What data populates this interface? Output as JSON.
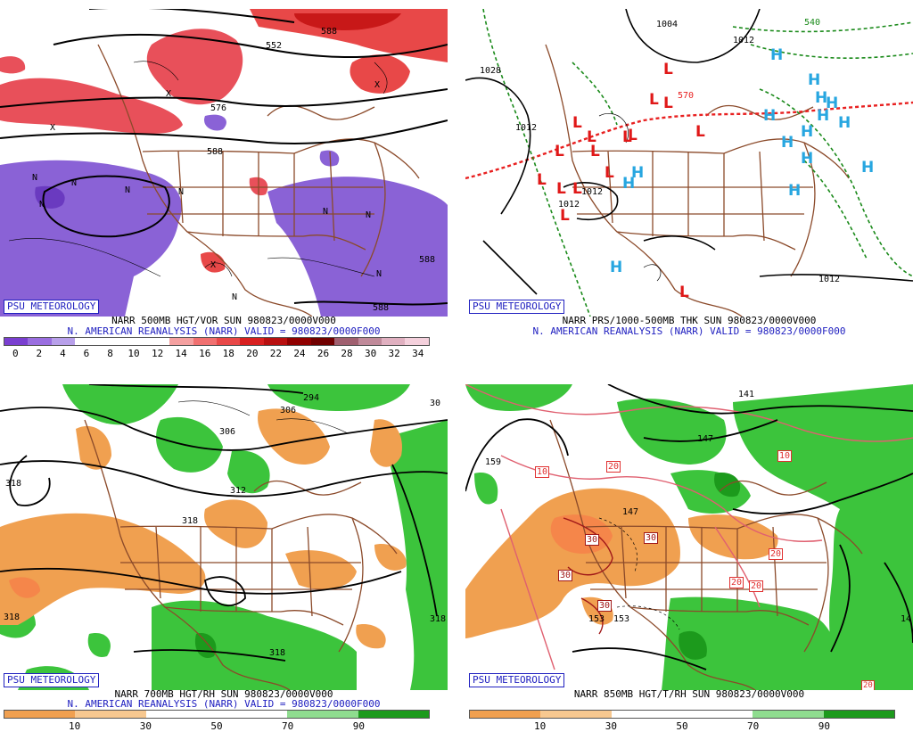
{
  "badge": "PSU METEOROLOGY",
  "colors": {
    "vort_purple": "#8a62d6",
    "vort_red": "#e8505a",
    "thk_red": "#e82020",
    "thk_green": "#1a8a1a",
    "h_blue": "#27a6e0",
    "l_red": "#e01818",
    "rh_green": "#3cc43c",
    "rh_orange": "#f0a050",
    "border_brown": "#8b4a2a"
  },
  "panels": {
    "tl": {
      "title": "NARR 500MB HGT/VOR SUN 980823/0000V000",
      "subtitle": "N. AMERICAN REANALYSIS (NARR) VALID = 980823/0000F000",
      "contour_labels": [
        "552",
        "588",
        "588",
        "588",
        "576",
        "588"
      ],
      "vort_symbols": [
        "N",
        "N",
        "N",
        "N",
        "N",
        "N",
        "N",
        "N",
        "N",
        "X",
        "X",
        "X",
        "X"
      ],
      "colorbar": {
        "labels": [
          "0",
          "2",
          "4",
          "6",
          "8",
          "10",
          "12",
          "14",
          "16",
          "18",
          "20",
          "22",
          "24",
          "26",
          "28",
          "30",
          "32",
          "34"
        ],
        "colors": [
          "#7a3fd0",
          "#9a6ee0",
          "#b8a0ea",
          "#ffffff",
          "#ffffff",
          "#ffffff",
          "#ffffff",
          "#f4a0a0",
          "#f07070",
          "#e84848",
          "#d82020",
          "#b81010",
          "#900000",
          "#700000",
          "#a06070",
          "#c08a9a",
          "#e0b0c0",
          "#f4d0dc"
        ]
      }
    },
    "tr": {
      "title": "NARR PRS/1000-500MB THK SUN 980823/0000V000",
      "subtitle": "N. AMERICAN REANALYSIS (NARR) VALID = 980823/0000F000",
      "contour_labels": [
        "1004",
        "1028",
        "1012",
        "1012",
        "1012",
        "1012",
        "1012",
        "570",
        "540"
      ],
      "highs": [
        "H",
        "H",
        "H",
        "H",
        "H",
        "H",
        "H",
        "H",
        "H",
        "H",
        "H",
        "H",
        "H",
        "H",
        "H"
      ],
      "lows": [
        "L",
        "L",
        "L",
        "L",
        "L",
        "L",
        "L",
        "L",
        "L",
        "L",
        "L",
        "L",
        "L",
        "L",
        "L",
        "L"
      ]
    },
    "bl": {
      "title": "NARR 700MB HGT/RH SUN 980823/0000V000",
      "subtitle": "N. AMERICAN REANALYSIS (NARR) VALID = 980823/0000F000",
      "contour_labels": [
        "294",
        "306",
        "306",
        "312",
        "318",
        "318",
        "318",
        "318",
        "318",
        "30"
      ],
      "colorbar": {
        "labels": [
          "10",
          "30",
          "50",
          "70",
          "90"
        ],
        "colors": [
          "#f0a050",
          "#f7c890",
          "#ffffff",
          "#ffffff",
          "#8fdc8f",
          "#1c9a1c"
        ]
      }
    },
    "br": {
      "title": "NARR 850MB HGT/T/RH SUN 980823/0000V000",
      "contour_labels": [
        "141",
        "147",
        "147",
        "159",
        "153",
        "153",
        "14"
      ],
      "temp_labels": [
        "10",
        "10",
        "20",
        "20",
        "20",
        "20",
        "20",
        "30",
        "30",
        "30",
        "30"
      ],
      "colorbar": {
        "labels": [
          "10",
          "30",
          "50",
          "70",
          "90"
        ],
        "colors": [
          "#f0a050",
          "#f7c890",
          "#ffffff",
          "#ffffff",
          "#8fdc8f",
          "#1c9a1c"
        ]
      }
    }
  }
}
